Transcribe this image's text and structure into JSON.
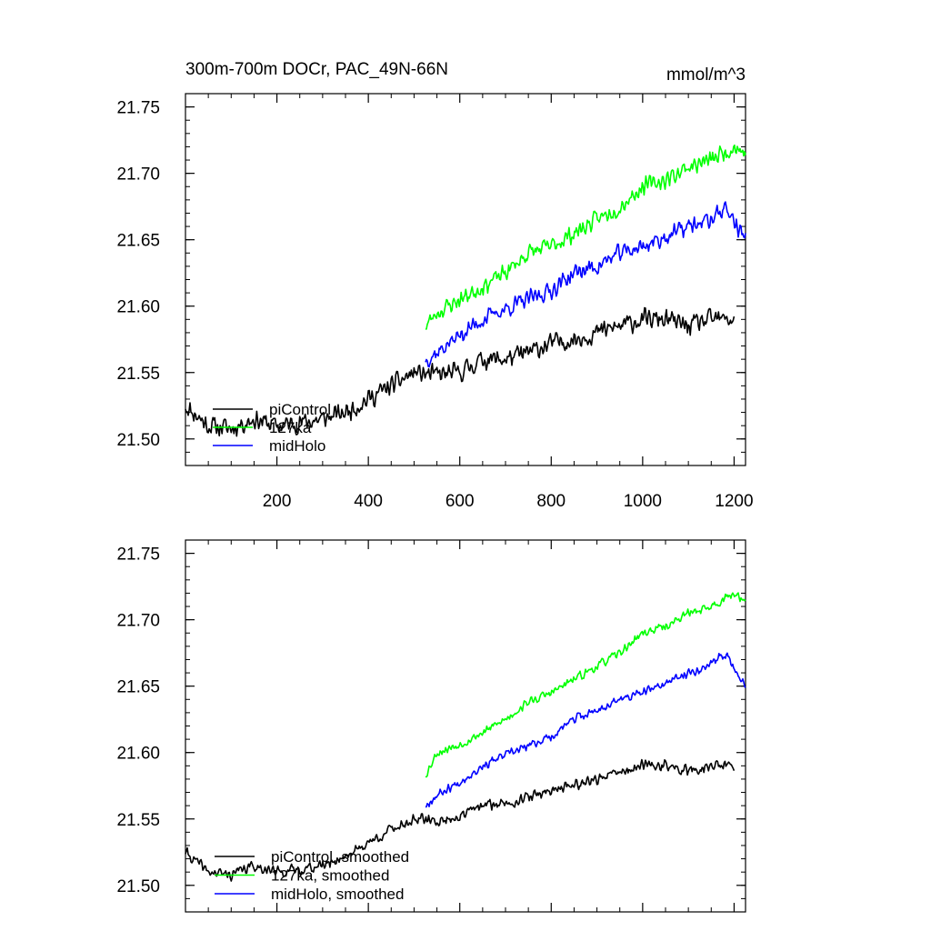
{
  "title_left": "300m-700m DOCr, PAC_49N-66N",
  "title_right": "mmol/m^3",
  "colors": {
    "piControl": "#000000",
    "ka127": "#00ff00",
    "midHolo": "#0000ff"
  },
  "chart_data": [
    {
      "type": "line",
      "xlim": [
        0,
        1225
      ],
      "ylim": [
        21.48,
        21.76
      ],
      "xticks": [
        200,
        400,
        600,
        800,
        1000,
        1200
      ],
      "xtick_labels": [
        "200",
        "400",
        "600",
        "800",
        "1000",
        "1200"
      ],
      "yticks": [
        21.5,
        21.55,
        21.6,
        21.65,
        21.7,
        21.75
      ],
      "ytick_labels": [
        "21.50",
        "21.55",
        "21.60",
        "21.65",
        "21.70",
        "21.75"
      ],
      "legend": {
        "position": "bottom-left",
        "entries": [
          "piControl",
          "127ka",
          "midHolo"
        ]
      },
      "series": [
        {
          "name": "piControl",
          "color": "#000000",
          "noise": 0.009,
          "seed": 11,
          "keypoints": [
            [
              0,
              21.525
            ],
            [
              50,
              21.51
            ],
            [
              100,
              21.508
            ],
            [
              150,
              21.515
            ],
            [
              200,
              21.51
            ],
            [
              250,
              21.512
            ],
            [
              300,
              21.515
            ],
            [
              350,
              21.52
            ],
            [
              400,
              21.53
            ],
            [
              450,
              21.54
            ],
            [
              500,
              21.55
            ],
            [
              550,
              21.548
            ],
            [
              600,
              21.55
            ],
            [
              650,
              21.56
            ],
            [
              700,
              21.56
            ],
            [
              750,
              21.565
            ],
            [
              800,
              21.572
            ],
            [
              850,
              21.575
            ],
            [
              900,
              21.58
            ],
            [
              950,
              21.585
            ],
            [
              1000,
              21.59
            ],
            [
              1050,
              21.59
            ],
            [
              1100,
              21.585
            ],
            [
              1150,
              21.59
            ],
            [
              1200,
              21.59
            ]
          ]
        },
        {
          "name": "127ka",
          "color": "#00ff00",
          "noise": 0.008,
          "seed": 23,
          "keypoints": [
            [
              525,
              21.585
            ],
            [
              550,
              21.595
            ],
            [
              600,
              21.605
            ],
            [
              650,
              21.615
            ],
            [
              700,
              21.625
            ],
            [
              750,
              21.64
            ],
            [
              800,
              21.645
            ],
            [
              850,
              21.655
            ],
            [
              900,
              21.665
            ],
            [
              950,
              21.675
            ],
            [
              1000,
              21.69
            ],
            [
              1050,
              21.695
            ],
            [
              1100,
              21.705
            ],
            [
              1150,
              21.71
            ],
            [
              1200,
              21.72
            ],
            [
              1225,
              21.715
            ]
          ]
        },
        {
          "name": "midHolo",
          "color": "#0000ff",
          "noise": 0.008,
          "seed": 37,
          "keypoints": [
            [
              525,
              21.56
            ],
            [
              550,
              21.565
            ],
            [
              600,
              21.578
            ],
            [
              650,
              21.59
            ],
            [
              700,
              21.598
            ],
            [
              750,
              21.605
            ],
            [
              800,
              21.612
            ],
            [
              850,
              21.625
            ],
            [
              900,
              21.63
            ],
            [
              950,
              21.64
            ],
            [
              1000,
              21.645
            ],
            [
              1050,
              21.652
            ],
            [
              1100,
              21.66
            ],
            [
              1150,
              21.665
            ],
            [
              1180,
              21.675
            ],
            [
              1225,
              21.65
            ]
          ]
        }
      ]
    },
    {
      "type": "line",
      "xlim": [
        0,
        1225
      ],
      "ylim": [
        21.48,
        21.76
      ],
      "xticks": [
        200,
        400,
        600,
        800,
        1000,
        1200
      ],
      "xtick_labels": [],
      "yticks": [
        21.5,
        21.55,
        21.6,
        21.65,
        21.7,
        21.75
      ],
      "ytick_labels": [
        "21.50",
        "21.55",
        "21.60",
        "21.65",
        "21.70",
        "21.75"
      ],
      "legend": {
        "position": "bottom-left",
        "entries": [
          "piControl, smoothed",
          "127ka, smoothed",
          "midHolo, smoothed"
        ]
      },
      "series": [
        {
          "name": "piControl, smoothed",
          "color": "#000000",
          "noise": 0.005,
          "seed": 41,
          "keypoints": [
            [
              0,
              21.525
            ],
            [
              50,
              21.51
            ],
            [
              100,
              21.508
            ],
            [
              150,
              21.515
            ],
            [
              200,
              21.51
            ],
            [
              250,
              21.512
            ],
            [
              300,
              21.515
            ],
            [
              350,
              21.522
            ],
            [
              400,
              21.532
            ],
            [
              450,
              21.542
            ],
            [
              500,
              21.55
            ],
            [
              550,
              21.548
            ],
            [
              600,
              21.552
            ],
            [
              650,
              21.56
            ],
            [
              700,
              21.562
            ],
            [
              750,
              21.566
            ],
            [
              800,
              21.572
            ],
            [
              850,
              21.576
            ],
            [
              900,
              21.58
            ],
            [
              950,
              21.585
            ],
            [
              1000,
              21.59
            ],
            [
              1050,
              21.59
            ],
            [
              1100,
              21.586
            ],
            [
              1150,
              21.59
            ],
            [
              1200,
              21.59
            ]
          ]
        },
        {
          "name": "127ka, smoothed",
          "color": "#00ff00",
          "noise": 0.004,
          "seed": 53,
          "keypoints": [
            [
              525,
              21.583
            ],
            [
              550,
              21.6
            ],
            [
              600,
              21.606
            ],
            [
              650,
              21.615
            ],
            [
              700,
              21.625
            ],
            [
              750,
              21.638
            ],
            [
              800,
              21.645
            ],
            [
              850,
              21.655
            ],
            [
              900,
              21.665
            ],
            [
              950,
              21.675
            ],
            [
              1000,
              21.69
            ],
            [
              1050,
              21.695
            ],
            [
              1100,
              21.705
            ],
            [
              1150,
              21.71
            ],
            [
              1200,
              21.72
            ],
            [
              1225,
              21.715
            ]
          ]
        },
        {
          "name": "midHolo, smoothed",
          "color": "#0000ff",
          "noise": 0.004,
          "seed": 67,
          "keypoints": [
            [
              525,
              21.56
            ],
            [
              550,
              21.568
            ],
            [
              600,
              21.578
            ],
            [
              650,
              21.59
            ],
            [
              700,
              21.598
            ],
            [
              750,
              21.605
            ],
            [
              800,
              21.612
            ],
            [
              850,
              21.625
            ],
            [
              900,
              21.632
            ],
            [
              950,
              21.64
            ],
            [
              1000,
              21.645
            ],
            [
              1050,
              21.652
            ],
            [
              1100,
              21.66
            ],
            [
              1150,
              21.666
            ],
            [
              1180,
              21.675
            ],
            [
              1225,
              21.65
            ]
          ]
        }
      ]
    }
  ]
}
